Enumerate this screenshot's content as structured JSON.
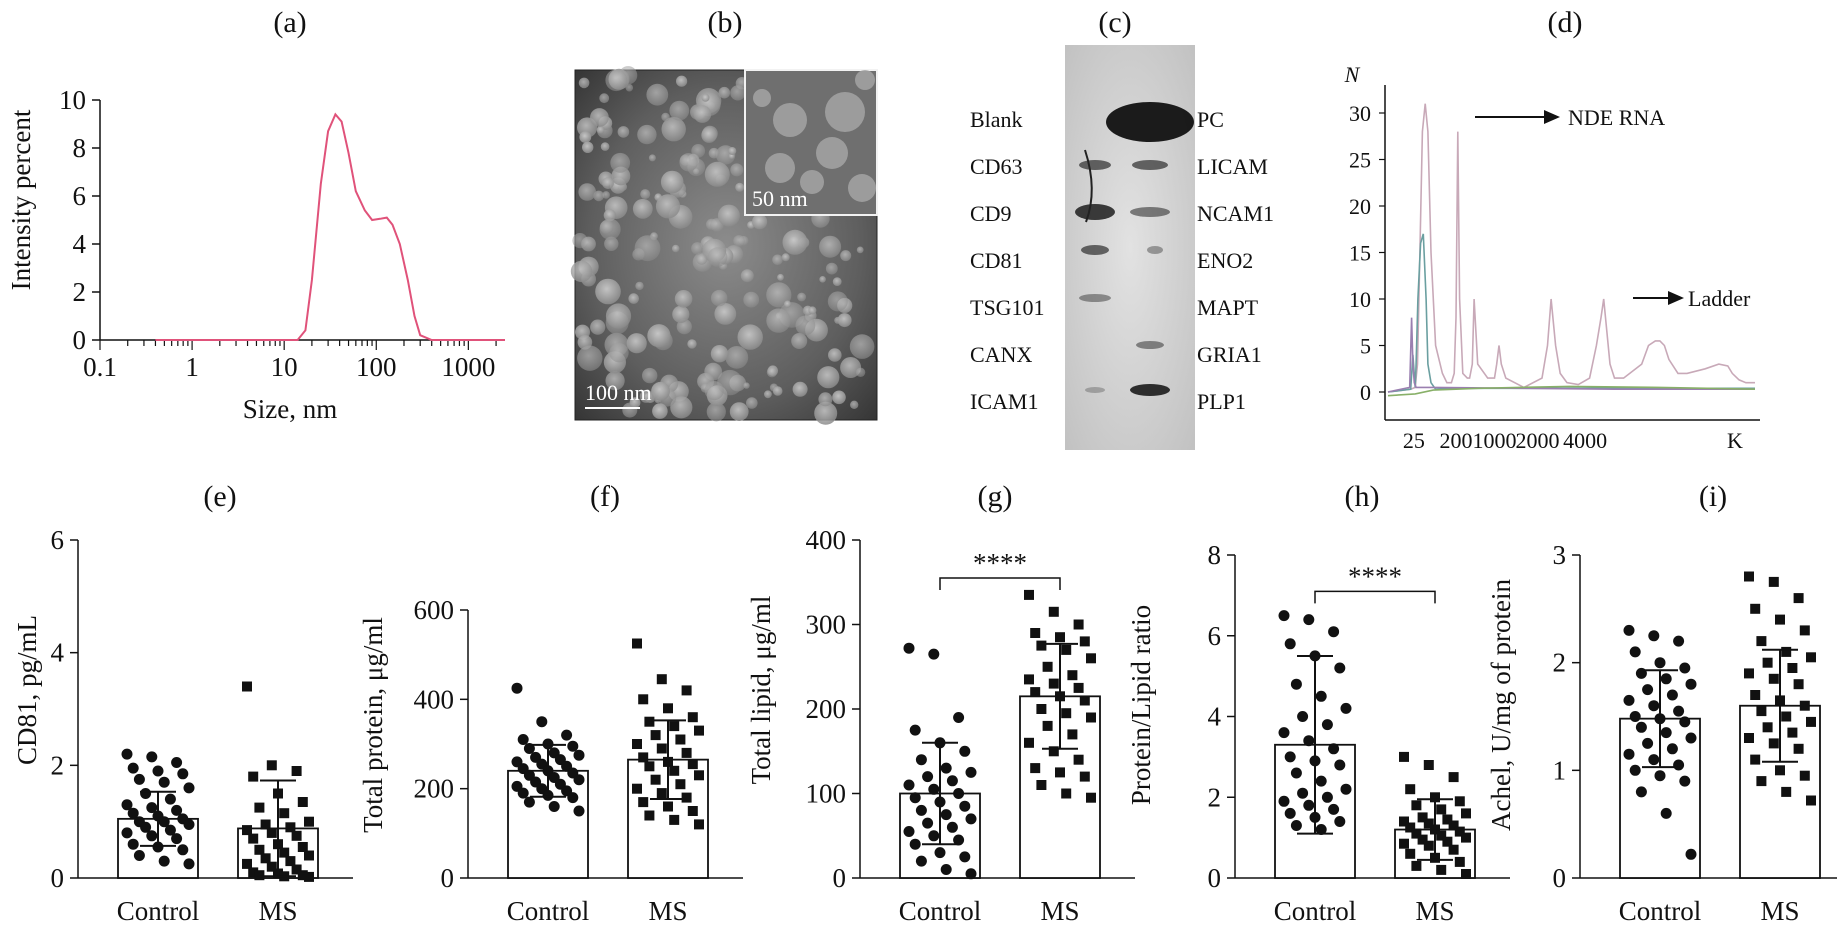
{
  "figure": {
    "panel_letters": [
      "(a)",
      "(b)",
      "(c)",
      "(d)",
      "(e)",
      "(f)",
      "(g)",
      "(h)",
      "(i)"
    ]
  },
  "tem": {
    "scale_main": "100 nm",
    "scale_inset": "50 nm"
  },
  "blot": {
    "left_labels": [
      "Blank",
      "CD63",
      "CD9",
      "CD81",
      "TSG101",
      "CANX",
      "ICAM1"
    ],
    "right_labels": [
      "PC",
      "LICAM",
      "NCAM1",
      "ENO2",
      "MAPT",
      "GRIA1",
      "PLP1"
    ]
  },
  "chart_data": [
    {
      "panel": "(a)",
      "type": "line",
      "xlabel": "Size, nm",
      "ylabel": "Intensity percent",
      "xscale": "log",
      "xlim": [
        0.1,
        2500
      ],
      "ylim": [
        0,
        10
      ],
      "xticks": [
        "0.1",
        "1",
        "10",
        "100",
        "1000"
      ],
      "yticks": [
        "0",
        "2",
        "4",
        "6",
        "8",
        "10"
      ],
      "color": "#e0527a",
      "series": [
        {
          "x": [
            0.4,
            1,
            5,
            14,
            17,
            20,
            25,
            30,
            36,
            42,
            50,
            60,
            75,
            90,
            110,
            130,
            150,
            180,
            220,
            260,
            300,
            400,
            1000,
            2500
          ],
          "y": [
            0,
            0,
            0,
            0,
            0.4,
            2.5,
            6.5,
            8.7,
            9.4,
            9.1,
            7.8,
            6.2,
            5.4,
            5.0,
            5.05,
            5.1,
            4.8,
            4.0,
            2.5,
            1.0,
            0.2,
            0,
            0,
            0
          ]
        }
      ]
    },
    {
      "panel": "(d)",
      "type": "line",
      "ylabel": "N",
      "xlabel": "K",
      "ylim": [
        -3,
        32
      ],
      "yticks": [
        "0",
        "5",
        "10",
        "15",
        "20",
        "25",
        "30"
      ],
      "xticks": [
        "25",
        "200",
        "1000",
        "2000",
        "4000"
      ],
      "annotations": [
        "NDE RNA",
        "Ladder"
      ],
      "series": [
        {
          "color": "#c8a9b8",
          "x": [
            0,
            50,
            60,
            65,
            70,
            76,
            82,
            88,
            95,
            105,
            120,
            130,
            140,
            146,
            150,
            154,
            158,
            165,
            175,
            180,
            186,
            190,
            198,
            220,
            235,
            240,
            245,
            250,
            260,
            300,
            340,
            352,
            360,
            370,
            380,
            395,
            420,
            445,
            460,
            470,
            476,
            480,
            490,
            500,
            520,
            560,
            575,
            590,
            600,
            610,
            620,
            640,
            660,
            700,
            730,
            750,
            760,
            775,
            790,
            810
          ],
          "y": [
            0,
            0.3,
            0.5,
            3,
            14,
            28,
            31,
            28,
            15,
            5,
            2,
            1,
            1,
            2,
            8,
            28,
            10,
            2,
            1.5,
            1.5,
            3,
            10,
            3,
            1.5,
            1.5,
            3,
            5,
            3,
            1.5,
            0.5,
            1.5,
            5,
            10,
            5,
            2,
            1,
            0.8,
            1.5,
            5,
            8,
            10,
            8,
            3,
            1.5,
            1.5,
            3,
            5,
            5.5,
            5.5,
            5,
            3.5,
            2,
            2,
            2.5,
            3,
            2.8,
            2,
            1.3,
            1,
            1
          ]
        },
        {
          "color": "#6a9fa0",
          "x": [
            0,
            50,
            55,
            60,
            62,
            66,
            72,
            78,
            84,
            88,
            95,
            105,
            130,
            200,
            400,
            600,
            810
          ],
          "y": [
            0,
            0.3,
            4,
            0.5,
            3,
            10,
            16,
            17,
            10,
            3,
            1,
            0.3,
            0.4,
            0.4,
            0.4,
            0.4,
            0.4
          ]
        },
        {
          "color": "#9a7fb0",
          "x": [
            0,
            48,
            52,
            55,
            58,
            62,
            70,
            100,
            300,
            500,
            810
          ],
          "y": [
            0,
            0.5,
            8,
            3,
            1,
            0.5,
            0.5,
            0.5,
            0.4,
            0.3,
            0.3
          ]
        },
        {
          "color": "#88b068",
          "x": [
            0,
            60,
            100,
            200,
            400,
            600,
            810
          ],
          "y": [
            -0.4,
            -0.2,
            0.2,
            0.4,
            0.6,
            0.5,
            0.3
          ]
        }
      ]
    },
    {
      "panel": "(e)",
      "type": "bar",
      "ylabel": "CD81, pg/mL",
      "categories": [
        "Control",
        "MS"
      ],
      "values": [
        1.05,
        0.88
      ],
      "sd": [
        0.48,
        0.85
      ],
      "ylim": [
        0,
        6
      ],
      "yticks": [
        "0",
        "2",
        "4",
        "6"
      ],
      "points": {
        "Control": [
          2.2,
          2.15,
          2.05,
          1.95,
          1.9,
          1.85,
          1.75,
          1.7,
          1.6,
          1.5,
          1.4,
          1.3,
          1.25,
          1.2,
          1.15,
          1.1,
          1.05,
          1.0,
          1.0,
          0.95,
          0.9,
          0.85,
          0.8,
          0.75,
          0.7,
          0.6,
          0.55,
          0.5,
          0.4,
          0.3,
          0.25
        ],
        "MS": [
          3.4,
          2.0,
          1.9,
          1.8,
          1.5,
          1.35,
          1.25,
          1.15,
          1.0,
          0.95,
          0.9,
          0.85,
          0.8,
          0.75,
          0.7,
          0.6,
          0.55,
          0.5,
          0.45,
          0.4,
          0.35,
          0.3,
          0.25,
          0.2,
          0.15,
          0.1,
          0.08,
          0.05,
          0.05,
          0.03,
          0.02
        ]
      }
    },
    {
      "panel": "(f)",
      "type": "bar",
      "ylabel": "Total protein, μg/ml",
      "categories": [
        "Control",
        "MS"
      ],
      "values": [
        240,
        265
      ],
      "sd": [
        58,
        88
      ],
      "ylim": [
        0,
        600
      ],
      "yticks": [
        "0",
        "200",
        "400",
        "600"
      ],
      "points": {
        "Control": [
          425,
          350,
          320,
          310,
          300,
          295,
          290,
          280,
          275,
          270,
          265,
          260,
          255,
          250,
          245,
          240,
          235,
          230,
          225,
          220,
          215,
          210,
          205,
          200,
          195,
          190,
          185,
          180,
          170,
          160,
          150
        ],
        "MS": [
          525,
          445,
          420,
          400,
          380,
          360,
          350,
          340,
          330,
          320,
          310,
          300,
          290,
          280,
          270,
          260,
          255,
          250,
          240,
          230,
          220,
          210,
          200,
          190,
          180,
          170,
          160,
          150,
          140,
          130,
          120
        ]
      }
    },
    {
      "panel": "(g)",
      "type": "bar",
      "ylabel": "Total lipid, μg/ml",
      "categories": [
        "Control",
        "MS"
      ],
      "values": [
        100,
        215
      ],
      "sd": [
        60,
        62
      ],
      "ylim": [
        0,
        400
      ],
      "yticks": [
        "0",
        "100",
        "200",
        "300",
        "400"
      ],
      "significance": "****",
      "points": {
        "Control": [
          272,
          265,
          190,
          175,
          160,
          150,
          140,
          130,
          125,
          120,
          115,
          110,
          105,
          100,
          95,
          90,
          85,
          80,
          75,
          70,
          65,
          60,
          55,
          50,
          45,
          40,
          30,
          25,
          20,
          10,
          5
        ],
        "MS": [
          335,
          315,
          300,
          290,
          285,
          280,
          275,
          270,
          260,
          250,
          240,
          235,
          230,
          225,
          220,
          215,
          210,
          200,
          195,
          190,
          180,
          170,
          160,
          150,
          140,
          130,
          125,
          120,
          110,
          100,
          95
        ]
      }
    },
    {
      "panel": "(h)",
      "type": "bar",
      "ylabel": "Protein/Lipid ratio",
      "categories": [
        "Control",
        "MS"
      ],
      "values": [
        3.3,
        1.2
      ],
      "sd": [
        2.2,
        0.75
      ],
      "ylim": [
        0,
        8
      ],
      "yticks": [
        "0",
        "2",
        "4",
        "6",
        "8"
      ],
      "significance": "****",
      "points": {
        "Control": [
          6.5,
          6.4,
          6.1,
          5.8,
          5.5,
          5.2,
          4.8,
          4.5,
          4.2,
          4.0,
          3.8,
          3.6,
          3.4,
          3.2,
          3.0,
          2.9,
          2.8,
          2.6,
          2.4,
          2.2,
          2.1,
          2.0,
          1.9,
          1.8,
          1.7,
          1.6,
          1.5,
          1.4,
          1.3,
          1.2
        ],
        "MS": [
          3.0,
          2.8,
          2.5,
          2.2,
          2.0,
          1.9,
          1.8,
          1.7,
          1.6,
          1.5,
          1.45,
          1.4,
          1.35,
          1.3,
          1.25,
          1.2,
          1.15,
          1.1,
          1.05,
          1.0,
          0.95,
          0.9,
          0.85,
          0.8,
          0.7,
          0.6,
          0.5,
          0.4,
          0.3,
          0.2,
          0.1
        ]
      }
    },
    {
      "panel": "(i)",
      "type": "bar",
      "ylabel": "Achel, U/mg of protein",
      "categories": [
        "Control",
        "MS"
      ],
      "values": [
        1.48,
        1.6
      ],
      "sd": [
        0.45,
        0.52
      ],
      "ylim": [
        0,
        3
      ],
      "yticks": [
        "0",
        "1",
        "2",
        "3"
      ],
      "points": {
        "Control": [
          2.3,
          2.25,
          2.2,
          2.1,
          2.0,
          1.95,
          1.9,
          1.85,
          1.8,
          1.75,
          1.7,
          1.65,
          1.6,
          1.55,
          1.5,
          1.48,
          1.45,
          1.4,
          1.35,
          1.3,
          1.25,
          1.2,
          1.15,
          1.1,
          1.05,
          1.0,
          0.95,
          0.9,
          0.8,
          0.6,
          0.22
        ],
        "MS": [
          2.8,
          2.75,
          2.6,
          2.5,
          2.4,
          2.3,
          2.2,
          2.1,
          2.05,
          2.0,
          1.95,
          1.9,
          1.85,
          1.8,
          1.7,
          1.65,
          1.6,
          1.55,
          1.5,
          1.45,
          1.4,
          1.35,
          1.3,
          1.25,
          1.2,
          1.1,
          1.0,
          0.95,
          0.9,
          0.8,
          0.72
        ]
      }
    }
  ]
}
